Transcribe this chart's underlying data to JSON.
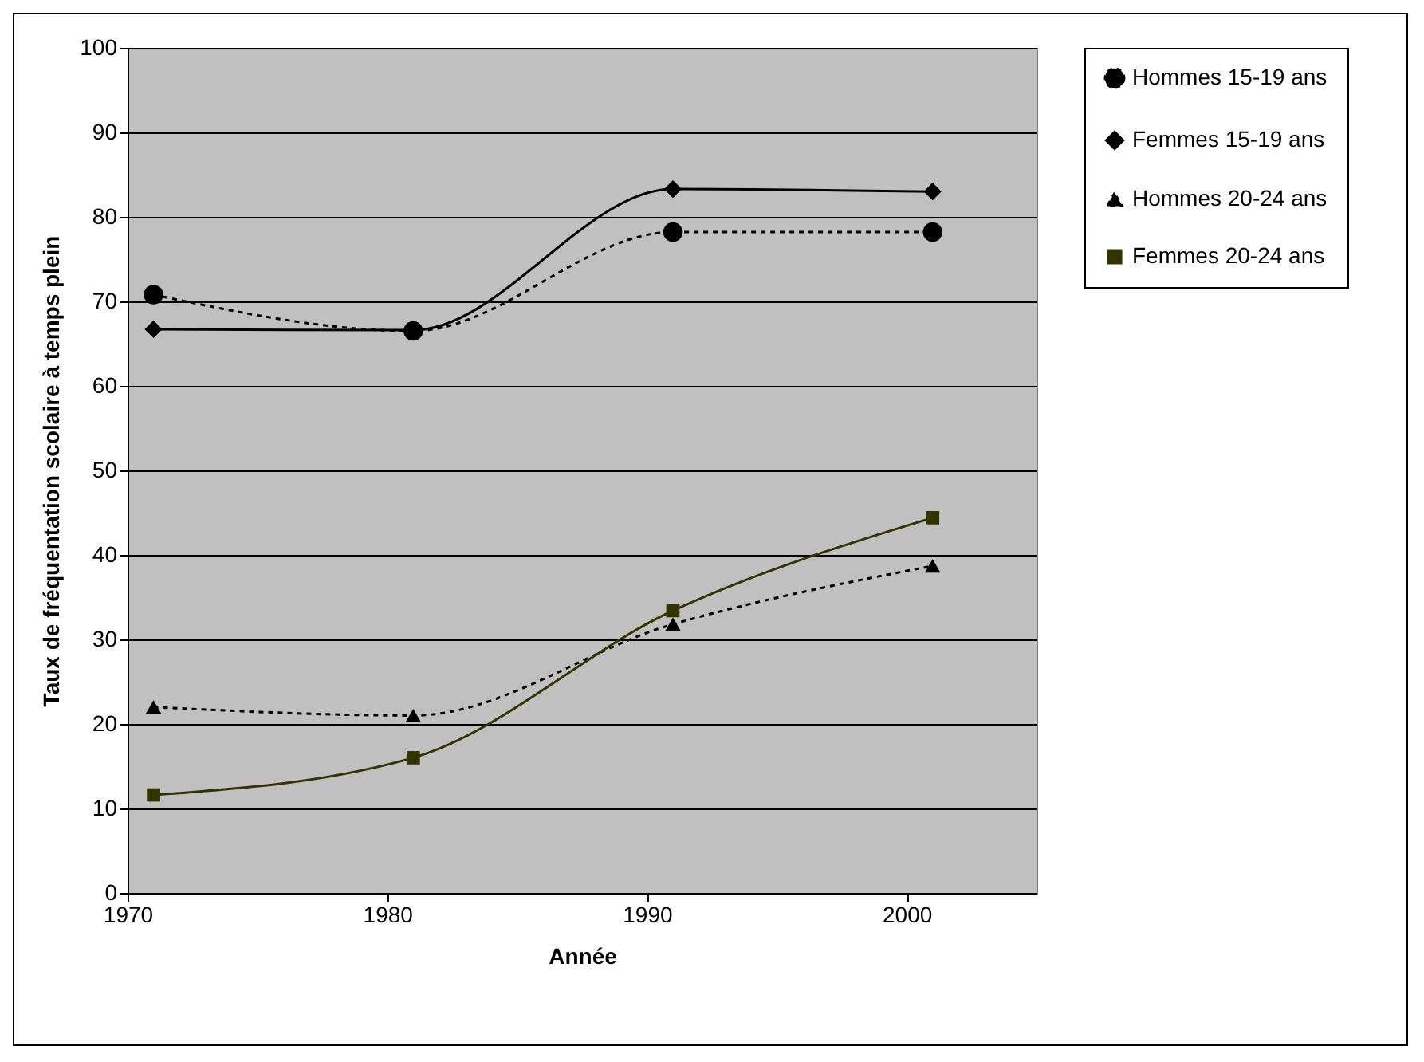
{
  "chart_data": {
    "type": "line",
    "xlabel": "Année",
    "ylabel": "Taux de fréquentation scolaire à temps plein",
    "x": [
      1971,
      1981,
      1991,
      2001
    ],
    "series": [
      {
        "name": "Hommes 15-19 ans",
        "color": "#000000",
        "marker": "circle",
        "line_style": "dotted",
        "values": [
          70.8,
          66.5,
          78.2,
          78.2
        ]
      },
      {
        "name": "Femmes 15-19 ans",
        "color": "#000000",
        "marker": "diamond",
        "line_style": "solid",
        "values": [
          66.7,
          66.6,
          83.3,
          83.0
        ]
      },
      {
        "name": "Hommes 20-24 ans",
        "color": "#000000",
        "marker": "triangle",
        "line_style": "dotted",
        "values": [
          22.0,
          21.0,
          31.8,
          38.7
        ]
      },
      {
        "name": "Femmes 20-24 ans",
        "color": "#333300",
        "marker": "square",
        "line_style": "solid",
        "values": [
          11.6,
          16.0,
          33.4,
          44.4
        ]
      }
    ],
    "xlim": [
      1970,
      2005
    ],
    "xticks": [
      1970,
      1980,
      1990,
      2000
    ],
    "ylim": [
      0,
      100
    ],
    "yticks": [
      0,
      10,
      20,
      30,
      40,
      50,
      60,
      70,
      80,
      90,
      100
    ],
    "grid": "y",
    "legend": "right"
  }
}
